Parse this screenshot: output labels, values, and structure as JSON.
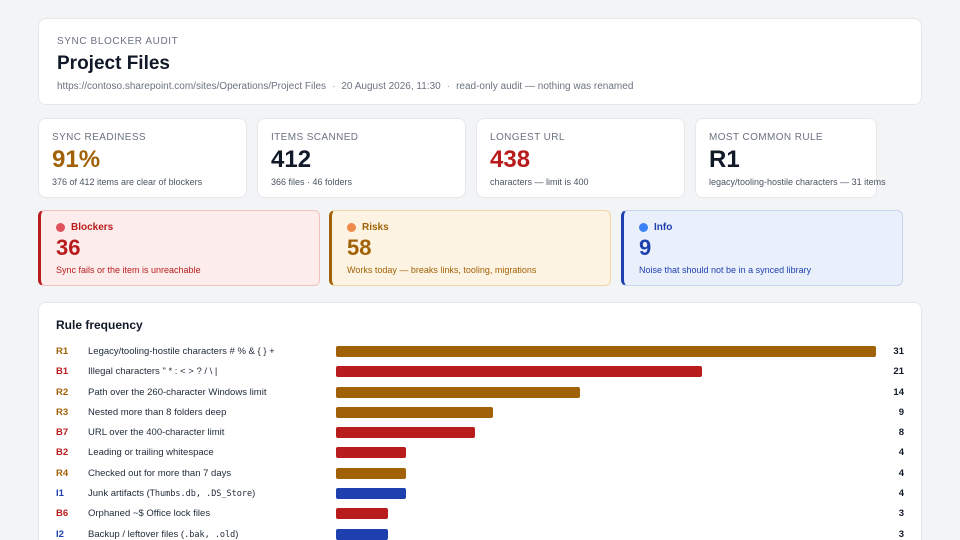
{
  "header": {
    "eyebrow": "SYNC BLOCKER AUDIT",
    "title": "Project Files",
    "url": "https://contoso.sharepoint.com/sites/Operations/Project Files",
    "timestamp": "20 August 2026, 11:30",
    "note": "read-only audit — nothing was renamed",
    "separator": "·"
  },
  "stats": [
    {
      "label": "SYNC READINESS",
      "value": "91%",
      "sub": "376 of 412 items are clear of blockers",
      "color": "#a16207"
    },
    {
      "label": "ITEMS SCANNED",
      "value": "412",
      "sub": "366 files · 46 folders",
      "color": "#111827"
    },
    {
      "label": "LONGEST URL",
      "value": "438",
      "sub": "characters — limit is 400",
      "color": "#b91c1c"
    },
    {
      "label": "MOST COMMON RULE",
      "value": "R1",
      "sub": "legacy/tooling-hostile characters — 31 items",
      "color": "#111827"
    }
  ],
  "severity": {
    "blockers": {
      "label": "Blockers",
      "value": "36",
      "sub": "Sync fails or the item is unreachable",
      "color": "#b91c1c",
      "dot": "#e0525d"
    },
    "risks": {
      "label": "Risks",
      "value": "58",
      "sub": "Works today — breaks links, tooling, migrations",
      "color": "#a16207",
      "dot": "#f08a4b"
    },
    "info": {
      "label": "Info",
      "value": "9",
      "sub": "Noise that should not be in a synced library",
      "color": "#1e40af",
      "dot": "#3b82f6"
    }
  },
  "rules": {
    "title": "Rule frequency",
    "max": 31,
    "colors": {
      "R": "#a16207",
      "B": "#b91c1c",
      "I": "#1e40af"
    },
    "items": [
      {
        "code": "R1",
        "label": "Legacy/tooling-hostile characters # % & { } +",
        "count": 31
      },
      {
        "code": "B1",
        "label": "Illegal characters \" * : < > ? / \\ |",
        "count": 21
      },
      {
        "code": "R2",
        "label": "Path over the 260-character Windows limit",
        "count": 14
      },
      {
        "code": "R3",
        "label": "Nested more than 8 folders deep",
        "count": 9
      },
      {
        "code": "B7",
        "label": "URL over the 400-character limit",
        "count": 8
      },
      {
        "code": "B2",
        "label": "Leading or trailing whitespace",
        "count": 4
      },
      {
        "code": "R4",
        "label": "Checked out for more than 7 days",
        "count": 4
      },
      {
        "code": "I1",
        "label_pre": "Junk artifacts (",
        "label_code": "Thumbs.db, .DS_Store",
        "label_post": ")",
        "count": 4
      },
      {
        "code": "B6",
        "label": "Orphaned ~$ Office lock files",
        "count": 3
      },
      {
        "code": "I2",
        "label_pre": "Backup / leftover files (",
        "label_code": ".bak, .old",
        "label_post": ")",
        "count": 3
      }
    ]
  }
}
